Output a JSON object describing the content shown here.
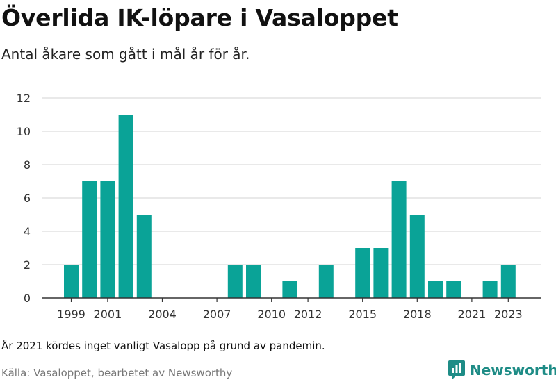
{
  "header": {
    "title": "Överlida IK-löpare i Vasaloppet",
    "subtitle": "Antal åkare som gått i mål år för år."
  },
  "footer": {
    "note": "År 2021 kördes inget vanligt Vasalopp på grund av pandemin.",
    "source": "Källa: Vasaloppet, bearbetet av Newsworthy",
    "brand": "Newsworthy"
  },
  "colors": {
    "bar": "#0aa397",
    "grid": "#dcdcdc",
    "axis": "#333333",
    "text": "#333333",
    "brand": "#1e8c86"
  },
  "icons": {
    "brand_logo": "newsworthy-logo-icon"
  },
  "chart_data": {
    "type": "bar",
    "x": [
      1999,
      2000,
      2001,
      2002,
      2003,
      2004,
      2005,
      2006,
      2007,
      2008,
      2009,
      2010,
      2011,
      2012,
      2013,
      2014,
      2015,
      2016,
      2017,
      2018,
      2019,
      2020,
      2021,
      2022,
      2023
    ],
    "values": [
      2,
      7,
      7,
      11,
      5,
      0,
      0,
      0,
      0,
      2,
      2,
      0,
      1,
      0,
      2,
      0,
      3,
      3,
      7,
      5,
      1,
      1,
      0,
      1,
      2
    ],
    "xticks": [
      1999,
      2001,
      2004,
      2007,
      2010,
      2012,
      2015,
      2018,
      2021,
      2023
    ],
    "yticks": [
      0,
      2,
      4,
      6,
      8,
      10,
      12
    ],
    "ylim": [
      0,
      12
    ],
    "grid": true,
    "legend": "none"
  }
}
